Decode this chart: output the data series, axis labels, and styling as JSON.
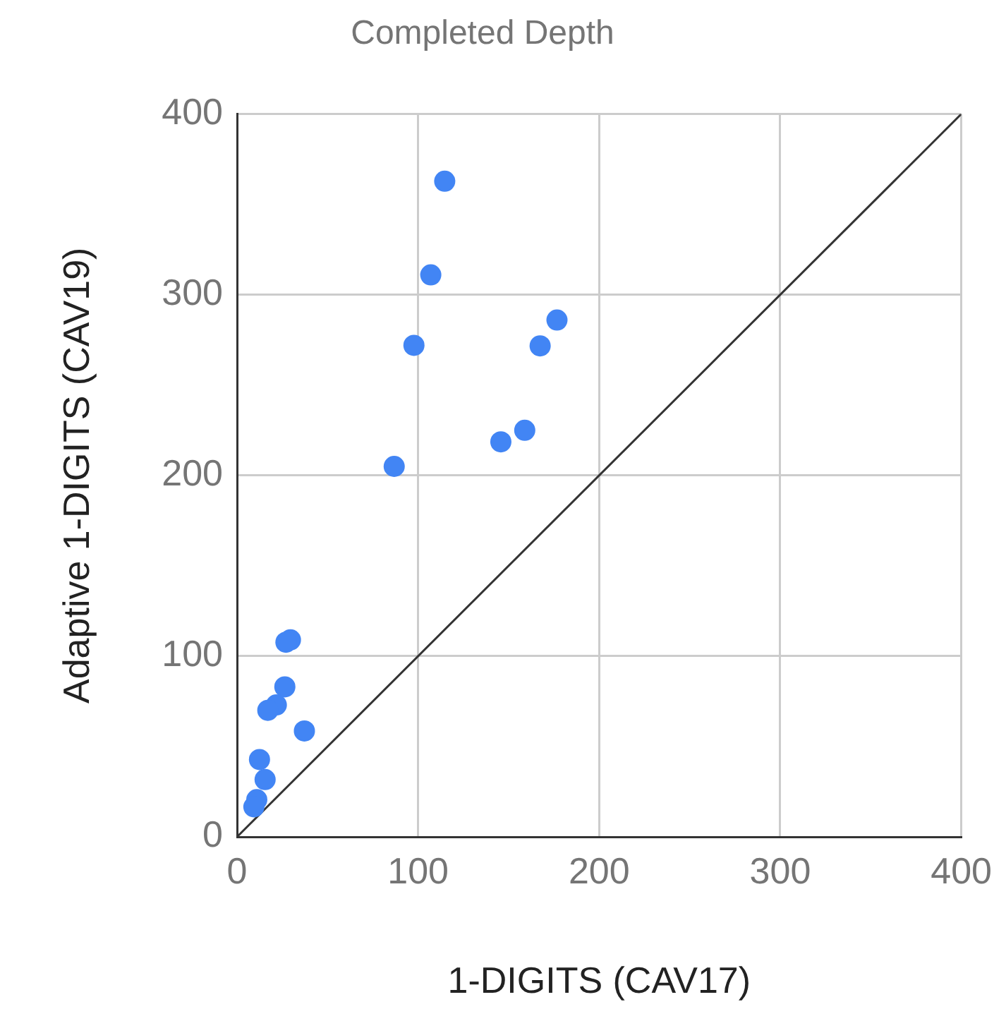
{
  "chart_data": {
    "type": "scatter",
    "title": "Completed Depth",
    "xlabel": "1-DIGITS (CAV17)",
    "ylabel": "Adaptive 1-DIGITS (CAV19)",
    "xlim": [
      0,
      400
    ],
    "ylim": [
      0,
      400
    ],
    "xticks": [
      0,
      100,
      200,
      300,
      400
    ],
    "yticks": [
      0,
      100,
      200,
      300,
      400
    ],
    "grid": true,
    "legend": false,
    "marker": "circle",
    "series": [
      {
        "color": "#4285f4",
        "x": [
          114.7,
          107,
          97.7,
          86.8,
          145.7,
          158.9,
          167.4,
          176.7,
          29.5,
          27,
          26.4,
          21.7,
          17,
          37.2,
          12.4,
          15.5,
          10.9,
          9.3
        ],
        "values": [
          362.8,
          311,
          272,
          205,
          218.6,
          225,
          271.7,
          286,
          109,
          107.7,
          83,
          73,
          70,
          58.6,
          42.8,
          31.7,
          20.6,
          16.6
        ]
      },
      {
        "type": "line",
        "color": "#333333",
        "marker": "none",
        "line_style": "solid",
        "x": [
          0,
          400
        ],
        "values": [
          0,
          400
        ]
      }
    ]
  }
}
